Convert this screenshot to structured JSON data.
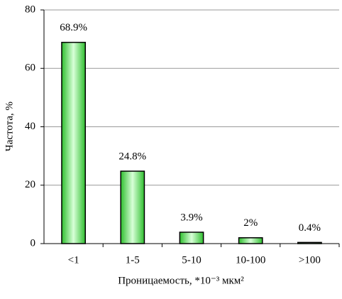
{
  "chart_data": {
    "type": "bar",
    "x_label": "Проницаемость, *10⁻³ мкм²",
    "y_label": "Частота, %",
    "categories": [
      "<1",
      "1-5",
      "5-10",
      "10-100",
      ">100"
    ],
    "values": [
      68.9,
      24.8,
      3.9,
      2,
      0.4
    ],
    "value_labels": [
      "68.9%",
      "24.8%",
      "3.9%",
      "2%",
      "0.4%"
    ],
    "color": "#66e066",
    "ylim": [
      0,
      80
    ],
    "yticks": [
      0,
      20,
      40,
      60,
      80
    ],
    "grid": true
  }
}
